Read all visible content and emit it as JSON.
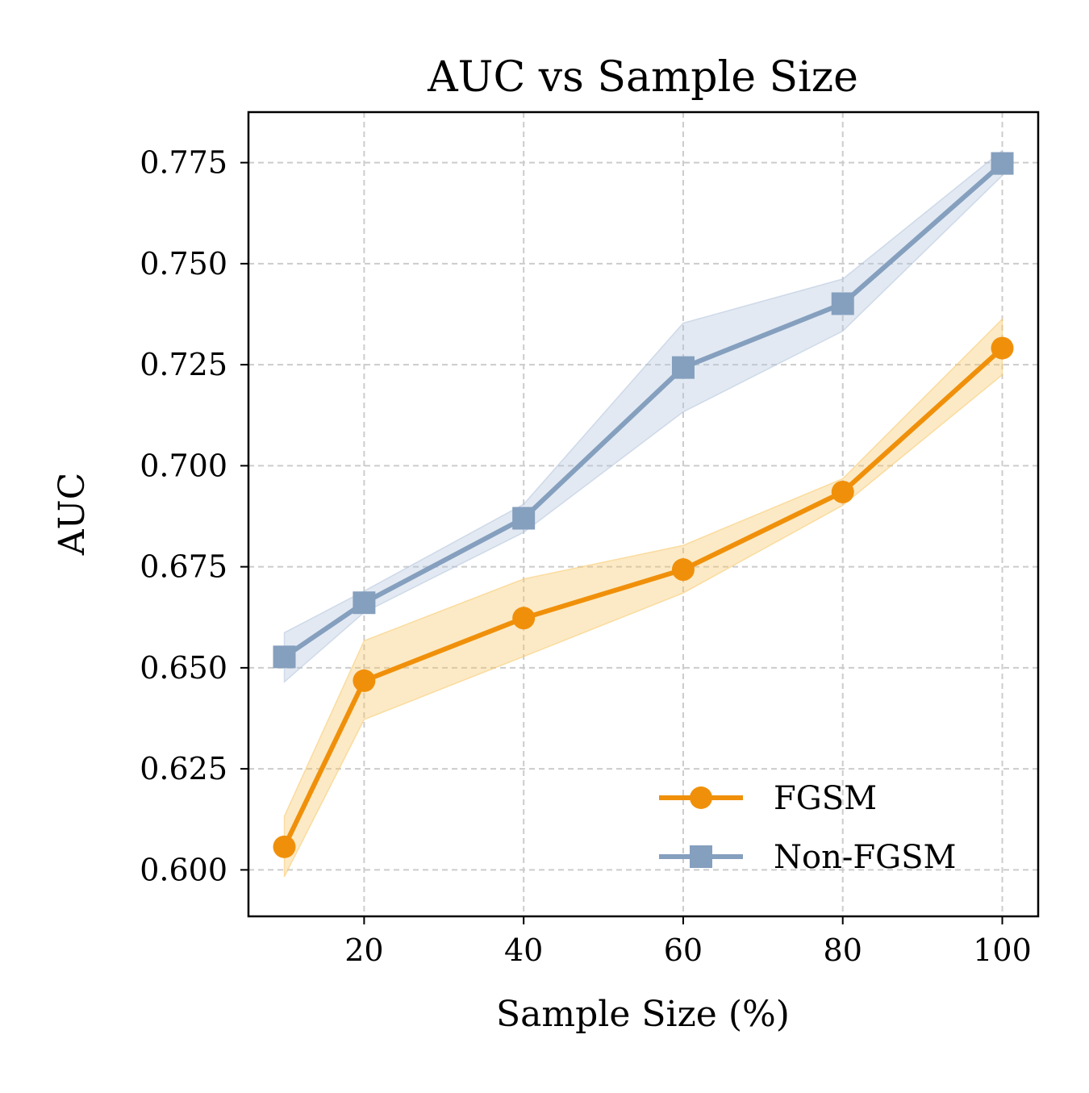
{
  "chart_data": {
    "type": "line",
    "title": "AUC vs Sample Size",
    "xlabel": "Sample Size (%)",
    "ylabel": "AUC",
    "xlim": [
      5.5,
      104.5
    ],
    "ylim": [
      0.5885,
      0.7875
    ],
    "xticks": [
      20,
      40,
      60,
      80,
      100
    ],
    "xtick_labels": [
      "20",
      "40",
      "60",
      "80",
      "100"
    ],
    "yticks": [
      0.6,
      0.625,
      0.65,
      0.675,
      0.7,
      0.725,
      0.75,
      0.775
    ],
    "ytick_labels": [
      "0.600",
      "0.625",
      "0.650",
      "0.675",
      "0.700",
      "0.725",
      "0.750",
      "0.775"
    ],
    "grid": true,
    "legend_position": "lower-right",
    "x": [
      10,
      20,
      40,
      60,
      80,
      100
    ],
    "series": [
      {
        "name": "FGSM",
        "marker": "circle",
        "color": "#f0900a",
        "band_color": "#f7c96a",
        "values": [
          0.6057,
          0.6468,
          0.6623,
          0.6743,
          0.6935,
          0.7291
        ],
        "lower": [
          0.5983,
          0.6372,
          0.6528,
          0.6685,
          0.6902,
          0.7225
        ],
        "upper": [
          0.6133,
          0.6567,
          0.672,
          0.6803,
          0.6968,
          0.7363
        ]
      },
      {
        "name": "Non-FGSM",
        "marker": "square",
        "color": "#859fbe",
        "band_color": "#b4c4dc",
        "values": [
          0.6527,
          0.6661,
          0.687,
          0.7243,
          0.7401,
          0.7748
        ],
        "lower": [
          0.6465,
          0.6637,
          0.6835,
          0.7133,
          0.7333,
          0.7718
        ],
        "upper": [
          0.6587,
          0.669,
          0.6905,
          0.7353,
          0.7462,
          0.778
        ]
      }
    ]
  }
}
